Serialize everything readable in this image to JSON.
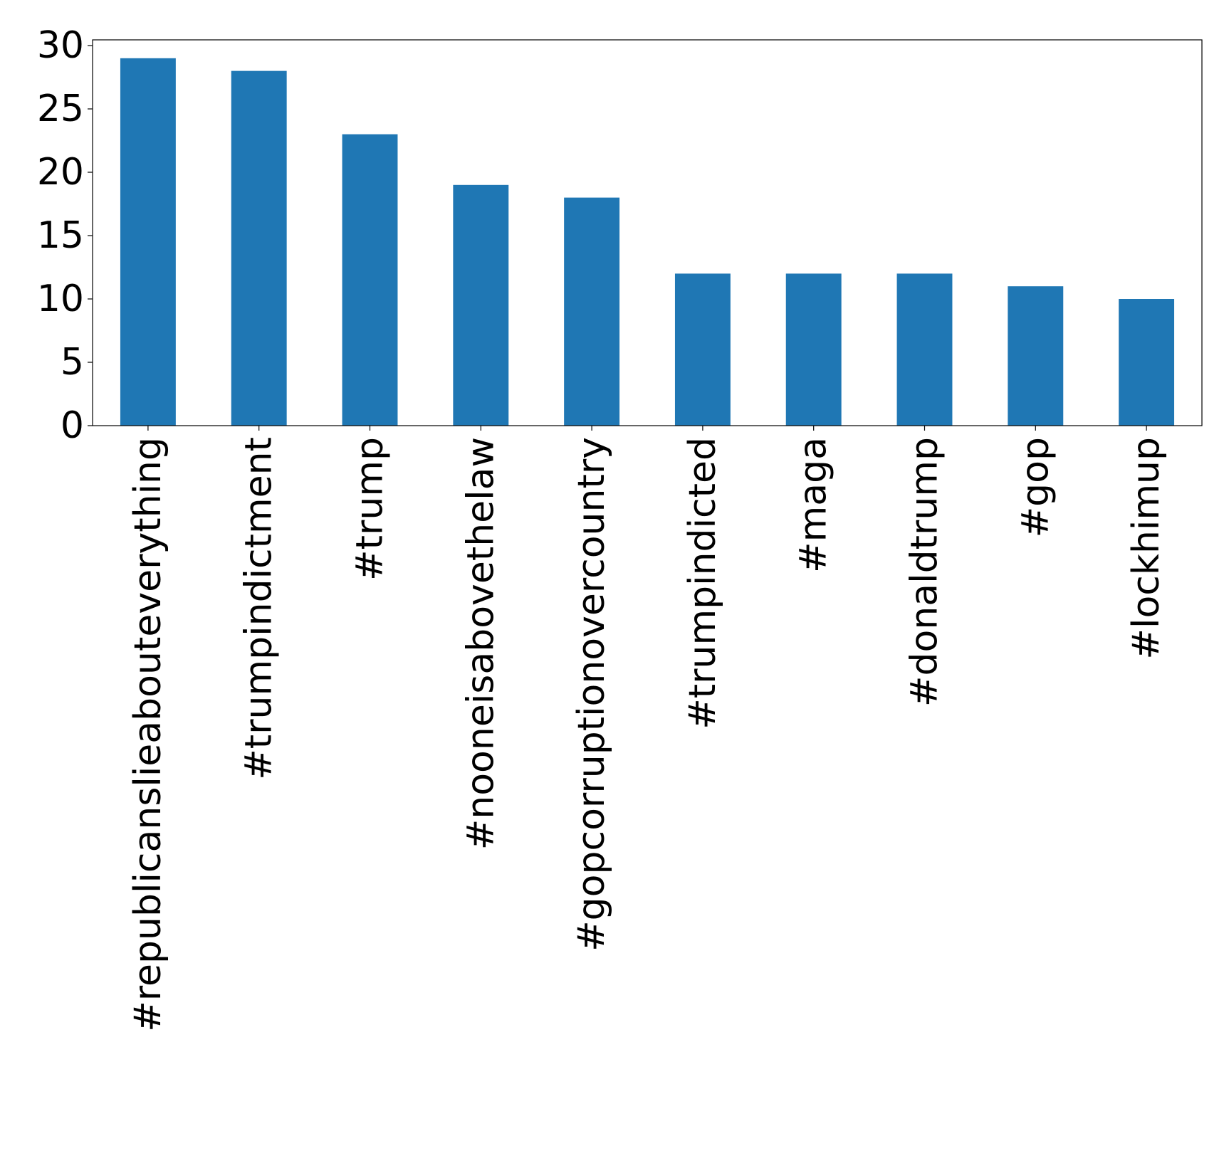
{
  "chart_data": {
    "type": "bar",
    "title": "",
    "xlabel": "",
    "ylabel": "",
    "categories": [
      "#republicanslieabouteverything",
      "#trumpindictment",
      "#trump",
      "#nooneisabovethelaw",
      "#gopcorruptionovercountry",
      "#trumpindicted",
      "#maga",
      "#donaldtrump",
      "#gop",
      "#lockhimup"
    ],
    "values": [
      29,
      28,
      23,
      19,
      18,
      12,
      12,
      12,
      11,
      10
    ],
    "ylim": [
      0,
      30.45
    ],
    "yticks": [
      0,
      5,
      10,
      15,
      20,
      25,
      30
    ],
    "grid": false,
    "legend": "none",
    "bar_color": "#1f77b4"
  }
}
